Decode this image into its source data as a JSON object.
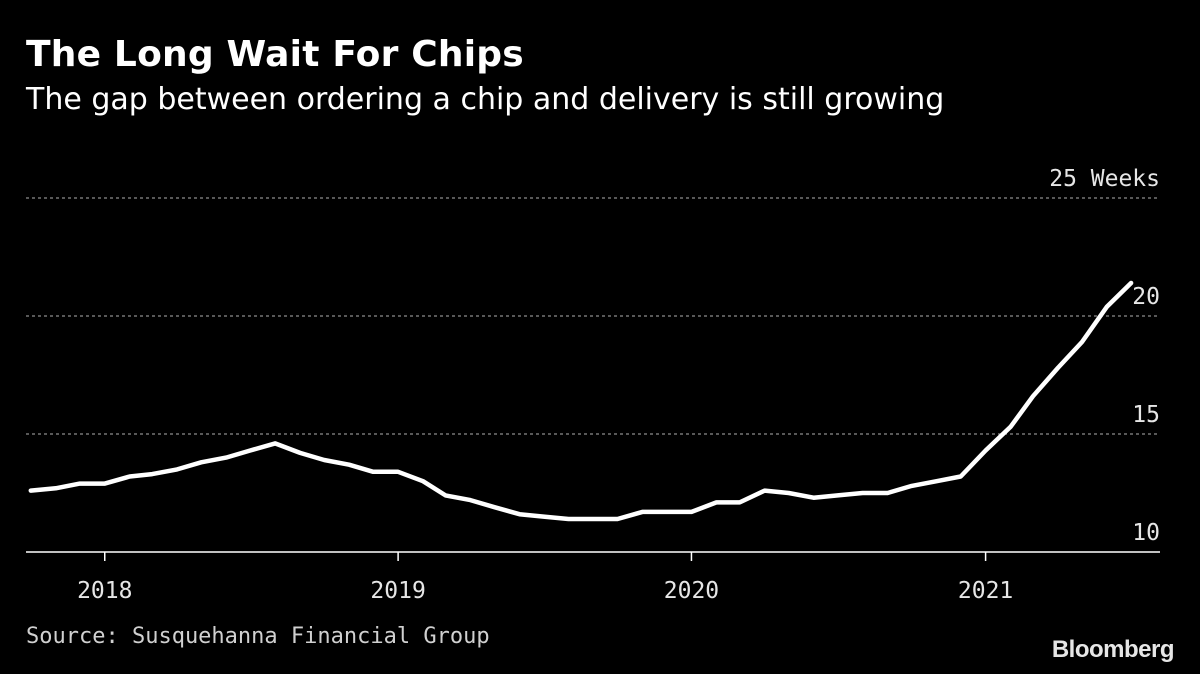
{
  "header": {
    "title": "The Long Wait For Chips",
    "subtitle": "The gap between ordering a chip and delivery is still growing"
  },
  "footer": {
    "source": "Source: Susquehanna Financial Group",
    "brand": "Bloomberg"
  },
  "colors": {
    "background": "#000000",
    "line": "#ffffff",
    "grid": "#8c8c8c",
    "text": "#e6e6e6"
  },
  "chart_data": {
    "type": "line",
    "title": "The Long Wait For Chips",
    "subtitle": "The gap between ordering a chip and delivery is still growing",
    "ylabel": "",
    "xlabel": "",
    "ylim": [
      10,
      25
    ],
    "xlim": [
      "2017-09-25",
      "2021-08-06"
    ],
    "grid": true,
    "y_ticks": [
      {
        "value": 10,
        "label": "10"
      },
      {
        "value": 15,
        "label": "15"
      },
      {
        "value": 20,
        "label": "20"
      },
      {
        "value": 25,
        "label": "25 Weeks"
      }
    ],
    "x_ticks": [
      {
        "date": "2018-01-01",
        "label": "2018"
      },
      {
        "date": "2019-01-01",
        "label": "2019"
      },
      {
        "date": "2020-01-01",
        "label": "2020"
      },
      {
        "date": "2021-01-01",
        "label": "2021"
      }
    ],
    "series": [
      {
        "x": [
          "2017-10",
          "2017-11",
          "2017-12",
          "2018-01",
          "2018-02",
          "2018-03",
          "2018-04",
          "2018-05",
          "2018-06",
          "2018-07",
          "2018-08",
          "2018-09",
          "2018-10",
          "2018-11",
          "2018-12",
          "2019-01",
          "2019-02",
          "2019-03",
          "2019-04",
          "2019-05",
          "2019-06",
          "2019-07",
          "2019-08",
          "2019-09",
          "2019-10",
          "2019-11",
          "2019-12",
          "2020-01",
          "2020-02",
          "2020-03",
          "2020-04",
          "2020-05",
          "2020-06",
          "2020-07",
          "2020-08",
          "2020-09",
          "2020-10",
          "2020-11",
          "2020-12",
          "2021-01",
          "2021-02",
          "2021-03",
          "2021-04",
          "2021-05",
          "2021-06",
          "2021-07"
        ],
        "values": [
          12.6,
          12.7,
          12.9,
          12.9,
          13.2,
          13.3,
          13.5,
          13.8,
          14.0,
          14.3,
          14.6,
          14.2,
          13.9,
          13.7,
          13.4,
          13.4,
          13.0,
          12.4,
          12.2,
          11.9,
          11.6,
          11.5,
          11.4,
          11.4,
          11.4,
          11.7,
          11.7,
          11.7,
          12.1,
          12.1,
          12.6,
          12.5,
          12.3,
          12.4,
          12.5,
          12.5,
          12.8,
          13.0,
          13.2,
          14.3,
          15.3,
          16.6,
          17.8,
          18.9,
          20.4,
          21.4
        ]
      }
    ]
  }
}
